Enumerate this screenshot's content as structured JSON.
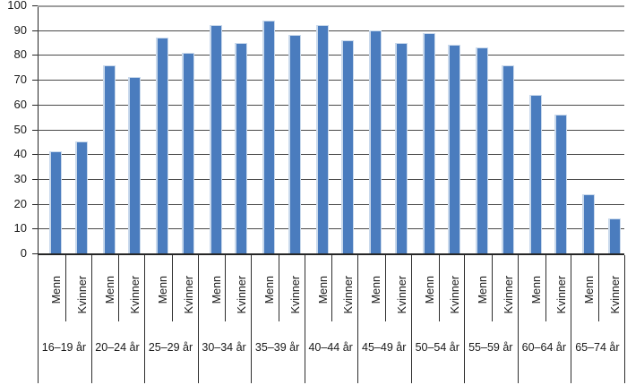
{
  "chart_data": {
    "type": "bar",
    "title": "",
    "xlabel": "",
    "ylabel": "",
    "categories": [
      "16–19 år",
      "20–24 år",
      "25–29 år",
      "30–34 år",
      "35–39 år",
      "40–44 år",
      "45–49 år",
      "50–54 år",
      "55–59 år",
      "60–64 år",
      "65–74 år"
    ],
    "series": [
      {
        "name": "Menn",
        "values": [
          41,
          76,
          87,
          92,
          94,
          92,
          90,
          89,
          83,
          64,
          24
        ]
      },
      {
        "name": "Kvinner",
        "values": [
          45,
          71,
          81,
          85,
          88,
          86,
          85,
          84,
          76,
          56,
          14
        ]
      }
    ],
    "ylim": [
      0,
      100
    ],
    "y_ticks": [
      0,
      10,
      20,
      30,
      40,
      50,
      60,
      70,
      80,
      90,
      100
    ],
    "grid": true,
    "legend_position": "none",
    "axis_layout": "two-level category axis: rotated series labels (Menn/Kvinner) under each bar pair, age-group label below"
  },
  "colors": {
    "bar": "#4A7CBE",
    "bar_edge": "#C9D9EC",
    "gridline": "#4a4a4a",
    "top_gridline": "#9e9e9e",
    "axis": "#262626",
    "text": "#1a1a1a"
  }
}
